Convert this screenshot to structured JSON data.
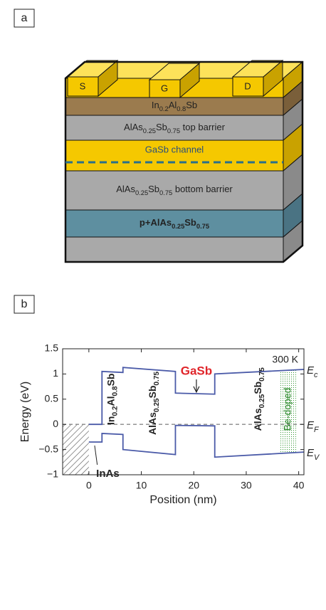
{
  "panel_a": {
    "label": "a",
    "electrodes": [
      "S",
      "G",
      "D"
    ],
    "cap": [
      "In",
      "0.2",
      "Al",
      "0.8",
      "Sb"
    ],
    "top_barrier": [
      "AlAs",
      "0.25",
      "Sb",
      "0.75",
      " top barrier"
    ],
    "channel": "GaSb channel",
    "bottom_barrier": [
      "AlAs",
      "0.25",
      "Sb",
      "0.75",
      " bottom barrier"
    ],
    "doped_layer": [
      "p+AlAs",
      "0.25",
      "Sb",
      "0.75"
    ]
  },
  "chart_data": {
    "type": "line",
    "panel_label": "b",
    "xlabel": "Position (nm)",
    "ylabel": "Energy (eV)",
    "xlim": [
      -5,
      41
    ],
    "ylim": [
      -1,
      1.5
    ],
    "xticks": [
      0,
      10,
      20,
      30,
      40
    ],
    "yticks": [
      {
        "value": -1,
        "label": "−1"
      },
      {
        "value": -0.5,
        "label": "−0.5"
      },
      0,
      0.5,
      1,
      1.5
    ],
    "series": [
      {
        "color": "#4a5aa8",
        "x": [
          0,
          2.5,
          2.5,
          6.5,
          6.5,
          16.5,
          16.5,
          24,
          24,
          41
        ],
        "values": [
          0,
          0,
          1.05,
          1.03,
          1.13,
          1.05,
          0.62,
          0.6,
          1.0,
          1.09
        ]
      },
      {
        "color": "#4a5aa8",
        "x": [
          0,
          2.5,
          2.5,
          6.5,
          6.5,
          16.5,
          16.5,
          24,
          24,
          41
        ],
        "values": [
          -0.35,
          -0.35,
          -0.18,
          -0.2,
          -0.5,
          -0.6,
          -0.02,
          -0.03,
          -0.65,
          -0.55
        ]
      }
    ],
    "fermi_level": 0,
    "inas_region": [
      -5,
      0
    ],
    "doped_region": [
      36.5,
      39.5
    ],
    "band_labels": [
      [
        "E",
        "c"
      ],
      [
        "E",
        "F"
      ],
      [
        "E",
        "V"
      ]
    ],
    "annotations": {
      "temperature": "300 K",
      "channel": "GaSb",
      "substrate": "InAs",
      "doping": "Be-doped",
      "layers": [
        [
          "In",
          "0.2",
          "Al",
          "0.8",
          "Sb"
        ],
        [
          "AlAs",
          "0.25",
          "Sb",
          "0.75"
        ],
        [
          "AlAs",
          "0.25",
          "Sb",
          "0.75"
        ]
      ]
    }
  }
}
